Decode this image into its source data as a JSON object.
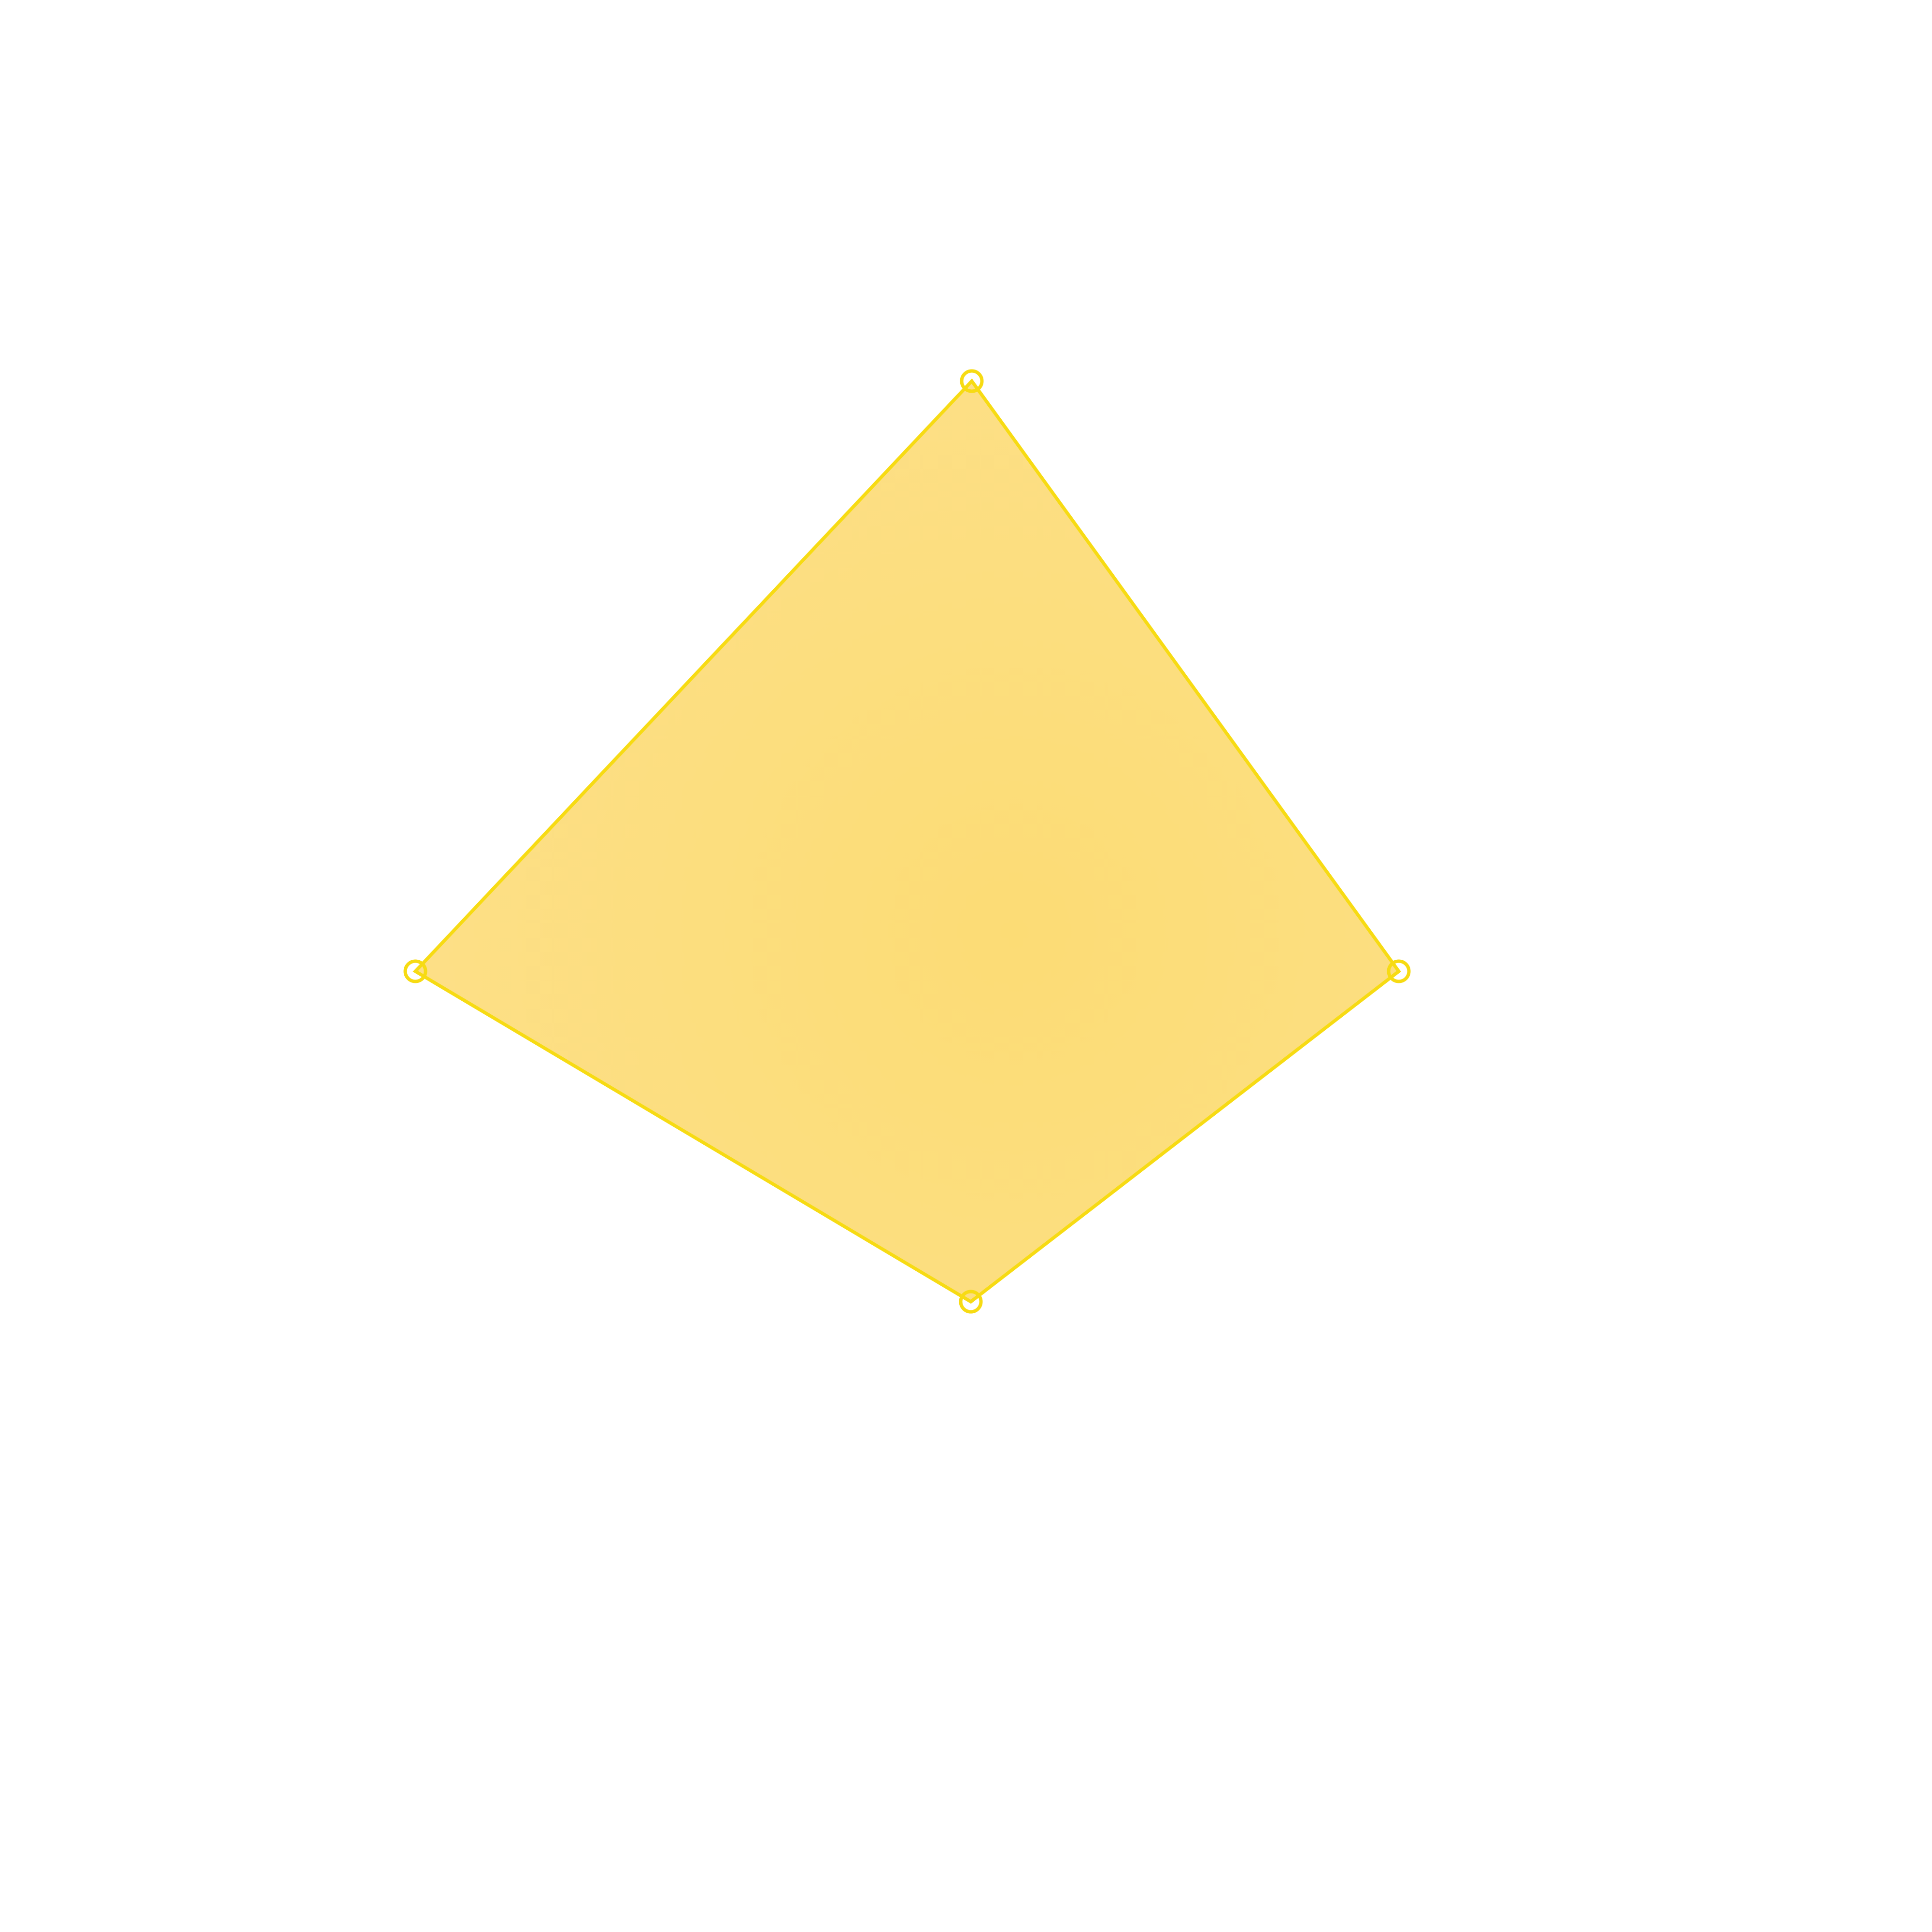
{
  "canvas": {
    "background_color": "#ffffff"
  },
  "shape": {
    "type": "quadrilateral",
    "fill_center_color": "#fcdc75",
    "fill_edge_color": "#fde08a",
    "stroke_color": "#f7db13",
    "vertex_handle_icon": "circle-outline-icon",
    "vertex_count": 4
  }
}
